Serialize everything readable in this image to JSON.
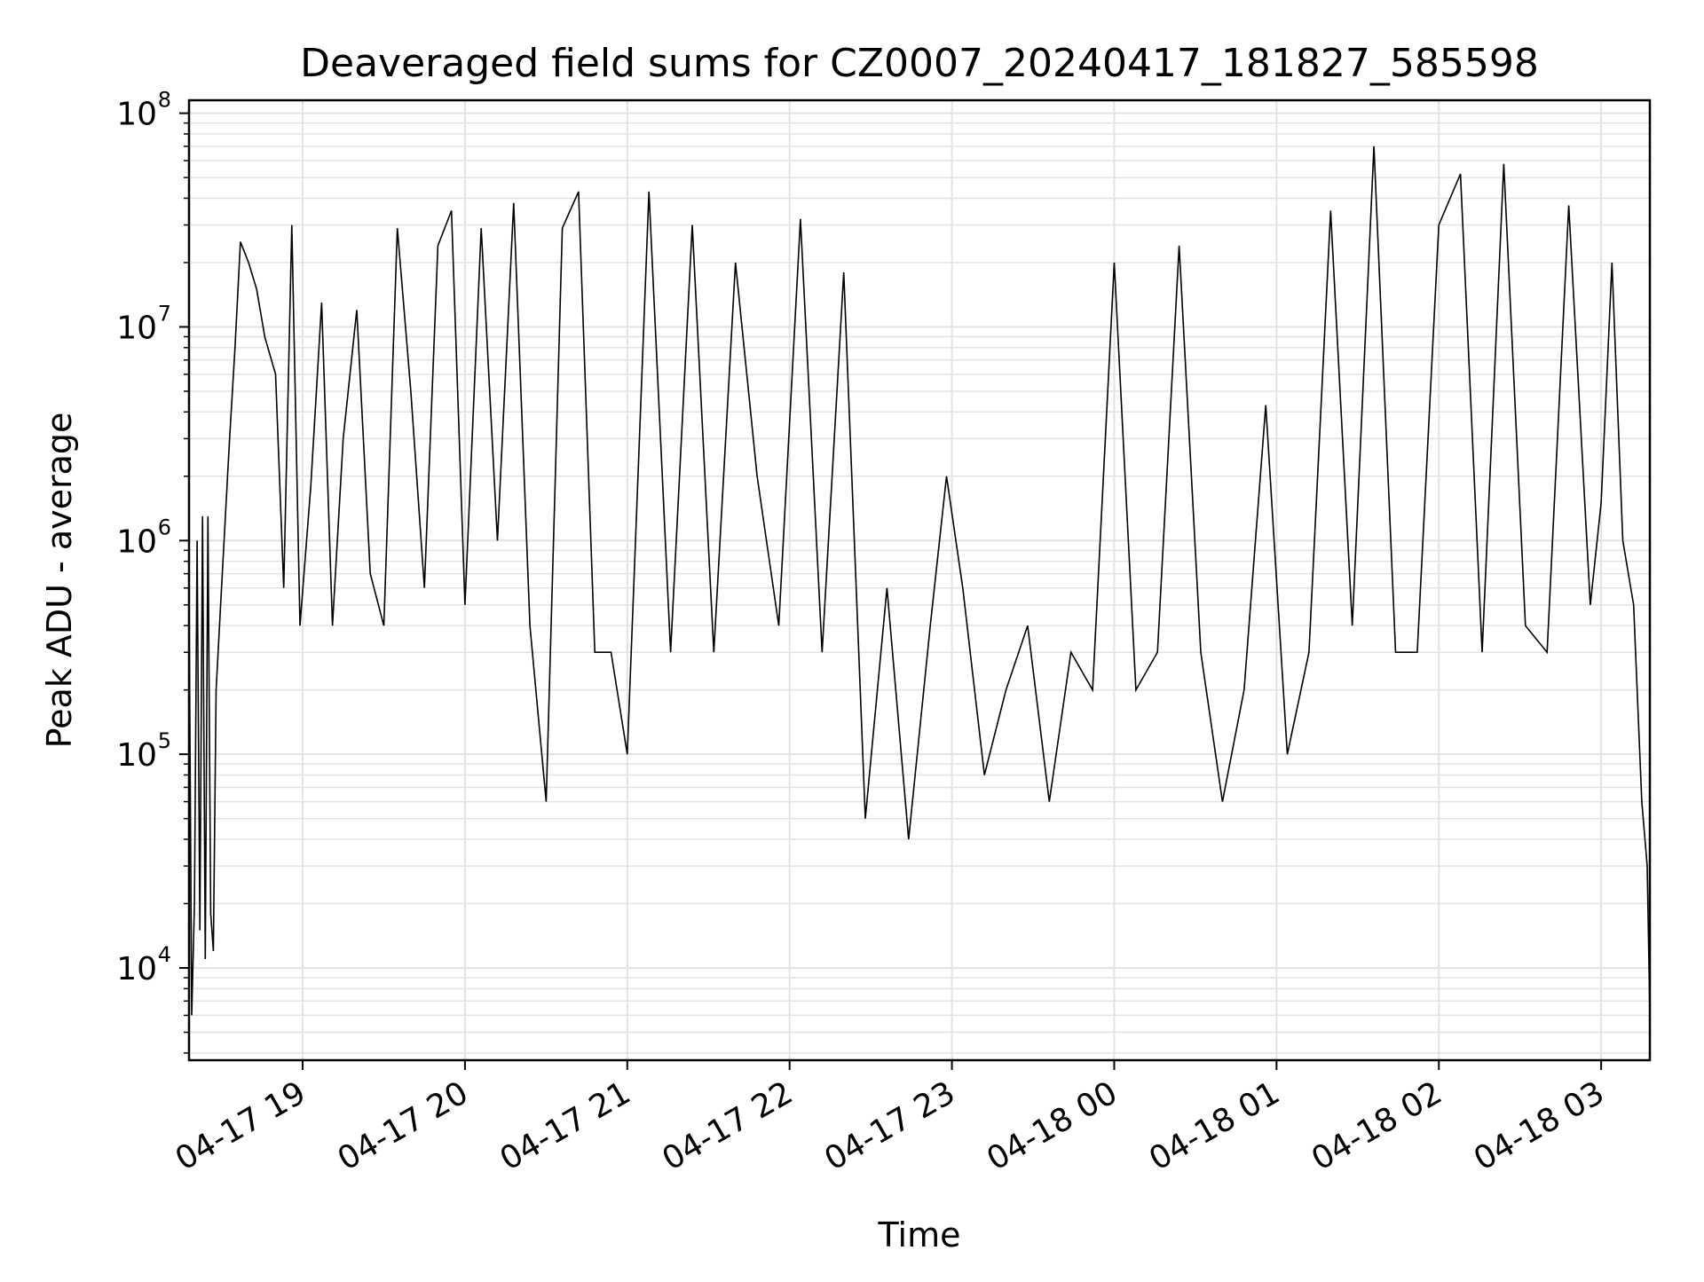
{
  "chart_data": {
    "type": "line",
    "title": "Deaveraged field sums for CZ0007_20240417_181827_585598",
    "xlabel": "Time",
    "ylabel": "Peak ADU - average",
    "yscale": "log",
    "ylim": [
      3700,
      115000000
    ],
    "xlim": [
      "2024-04-17 18:18",
      "2024-04-18 03:18"
    ],
    "grid": true,
    "grid_minor": true,
    "line_color": "#000000",
    "grid_color": "#e3e3e3",
    "x_ticks": [
      {
        "value": "2024-04-17 19:00",
        "label": "04-17 19"
      },
      {
        "value": "2024-04-17 20:00",
        "label": "04-17 20"
      },
      {
        "value": "2024-04-17 21:00",
        "label": "04-17 21"
      },
      {
        "value": "2024-04-17 22:00",
        "label": "04-17 22"
      },
      {
        "value": "2024-04-17 23:00",
        "label": "04-17 23"
      },
      {
        "value": "2024-04-18 00:00",
        "label": "04-18 00"
      },
      {
        "value": "2024-04-18 01:00",
        "label": "04-18 01"
      },
      {
        "value": "2024-04-18 02:00",
        "label": "04-18 02"
      },
      {
        "value": "2024-04-18 03:00",
        "label": "04-18 03"
      }
    ],
    "y_ticks": [
      {
        "value": 10000,
        "base": "10",
        "exp": "4"
      },
      {
        "value": 100000,
        "base": "10",
        "exp": "5"
      },
      {
        "value": 1000000,
        "base": "10",
        "exp": "6"
      },
      {
        "value": 10000000,
        "base": "10",
        "exp": "7"
      },
      {
        "value": 100000000,
        "base": "10",
        "exp": "8"
      }
    ],
    "series": [
      {
        "x": [
          "2024-04-17 18:18",
          "2024-04-17 18:19",
          "2024-04-17 18:20",
          "2024-04-17 18:21",
          "2024-04-17 18:22",
          "2024-04-17 18:23",
          "2024-04-17 18:24",
          "2024-04-17 18:25",
          "2024-04-17 18:26",
          "2024-04-17 18:27",
          "2024-04-17 18:28",
          "2024-04-17 18:30",
          "2024-04-17 18:33",
          "2024-04-17 18:35",
          "2024-04-17 18:37",
          "2024-04-17 18:40",
          "2024-04-17 18:43",
          "2024-04-17 18:46",
          "2024-04-17 18:50",
          "2024-04-17 18:53",
          "2024-04-17 18:56",
          "2024-04-17 18:59",
          "2024-04-17 19:03",
          "2024-04-17 19:07",
          "2024-04-17 19:11",
          "2024-04-17 19:15",
          "2024-04-17 19:20",
          "2024-04-17 19:25",
          "2024-04-17 19:30",
          "2024-04-17 19:35",
          "2024-04-17 19:40",
          "2024-04-17 19:45",
          "2024-04-17 19:50",
          "2024-04-17 19:55",
          "2024-04-17 20:00",
          "2024-04-17 20:06",
          "2024-04-17 20:12",
          "2024-04-17 20:18",
          "2024-04-17 20:24",
          "2024-04-17 20:30",
          "2024-04-17 20:36",
          "2024-04-17 20:42",
          "2024-04-17 20:48",
          "2024-04-17 20:54",
          "2024-04-17 21:00",
          "2024-04-17 21:08",
          "2024-04-17 21:16",
          "2024-04-17 21:24",
          "2024-04-17 21:32",
          "2024-04-17 21:40",
          "2024-04-17 21:48",
          "2024-04-17 21:56",
          "2024-04-17 22:04",
          "2024-04-17 22:12",
          "2024-04-17 22:20",
          "2024-04-17 22:28",
          "2024-04-17 22:36",
          "2024-04-17 22:44",
          "2024-04-17 22:52",
          "2024-04-17 22:58",
          "2024-04-17 23:04",
          "2024-04-17 23:12",
          "2024-04-17 23:20",
          "2024-04-17 23:28",
          "2024-04-17 23:36",
          "2024-04-17 23:44",
          "2024-04-17 23:52",
          "2024-04-18 00:00",
          "2024-04-18 00:08",
          "2024-04-18 00:16",
          "2024-04-18 00:24",
          "2024-04-18 00:32",
          "2024-04-18 00:40",
          "2024-04-18 00:48",
          "2024-04-18 00:56",
          "2024-04-18 01:04",
          "2024-04-18 01:12",
          "2024-04-18 01:20",
          "2024-04-18 01:28",
          "2024-04-18 01:36",
          "2024-04-18 01:44",
          "2024-04-18 01:52",
          "2024-04-18 02:00",
          "2024-04-18 02:08",
          "2024-04-18 02:16",
          "2024-04-18 02:24",
          "2024-04-18 02:32",
          "2024-04-18 02:40",
          "2024-04-18 02:48",
          "2024-04-18 02:56",
          "2024-04-18 03:00",
          "2024-04-18 03:04",
          "2024-04-18 03:08",
          "2024-04-18 03:12",
          "2024-04-18 03:15",
          "2024-04-18 03:17",
          "2024-04-18 03:18"
        ],
        "y": [
          600000,
          6000,
          20000,
          1000000,
          15000,
          1300000,
          11000,
          1300000,
          18000,
          12000,
          200000,
          600000,
          3000000,
          8000000,
          25000000,
          20000000,
          15000000,
          9000000,
          6000000,
          600000,
          30000000,
          400000,
          1800000,
          13000000,
          400000,
          3000000,
          12000000,
          700000,
          400000,
          29000000,
          5000000,
          600000,
          24000000,
          35000000,
          500000,
          29000000,
          1000000,
          38000000,
          400000,
          60000,
          29000000,
          43000000,
          300000,
          300000,
          100000,
          43000000,
          300000,
          30000000,
          300000,
          20000000,
          2000000,
          400000,
          32000000,
          300000,
          18000000,
          50000,
          600000,
          40000,
          400000,
          2000000,
          600000,
          80000,
          200000,
          400000,
          60000,
          300000,
          200000,
          20000000,
          200000,
          300000,
          24000000,
          300000,
          60000,
          200000,
          4300000,
          100000,
          300000,
          35000000,
          400000,
          70000000,
          300000,
          300000,
          30000000,
          52000000,
          300000,
          58000000,
          400000,
          300000,
          37000000,
          500000,
          1500000,
          20000000,
          1000000,
          500000,
          60000,
          30000,
          6000
        ]
      }
    ]
  }
}
